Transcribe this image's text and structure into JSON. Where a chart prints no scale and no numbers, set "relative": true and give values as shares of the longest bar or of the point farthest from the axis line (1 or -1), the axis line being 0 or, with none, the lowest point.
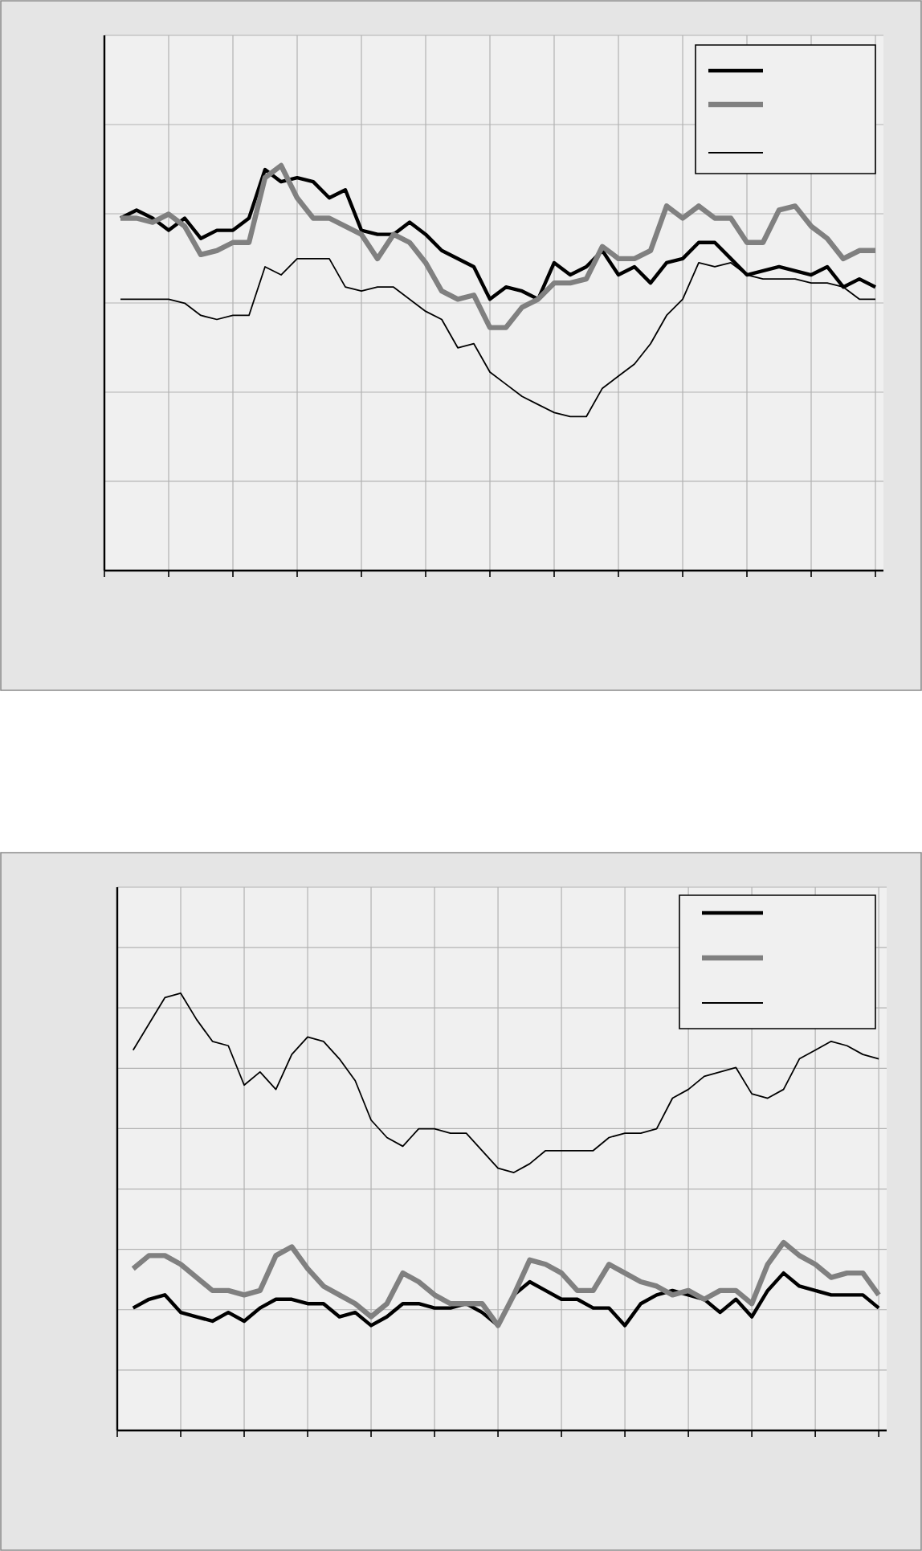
{
  "chart_data": [
    {
      "type": "line",
      "relative": true,
      "grid": true,
      "categories": [
        null,
        null,
        null,
        null,
        null,
        null,
        null,
        null,
        null,
        null,
        null,
        null,
        null,
        null,
        null,
        null,
        null,
        null,
        null,
        null,
        null,
        null,
        null,
        null,
        null,
        null,
        null,
        null,
        null,
        null,
        null,
        null,
        null,
        null,
        null,
        null,
        null,
        null,
        null,
        null,
        null,
        null,
        null,
        null,
        null,
        null,
        null,
        null
      ],
      "series": [
        {
          "color": "#000000",
          "values": [
            0.87,
            0.89,
            0.87,
            0.84,
            0.87,
            0.82,
            0.84,
            0.84,
            0.87,
            0.99,
            0.96,
            0.97,
            0.96,
            0.92,
            0.94,
            0.84,
            0.83,
            0.83,
            0.86,
            0.83,
            0.79,
            0.77,
            0.75,
            0.67,
            0.7,
            0.69,
            0.67,
            0.76,
            0.73,
            0.75,
            0.79,
            0.73,
            0.75,
            0.71,
            0.76,
            0.77,
            0.81,
            0.81,
            0.77,
            0.73,
            0.74,
            0.75,
            0.74,
            0.73,
            0.75,
            0.7,
            0.72,
            0.7
          ]
        },
        {
          "color": "#808080",
          "values": [
            0.87,
            0.87,
            0.86,
            0.88,
            0.85,
            0.78,
            0.79,
            0.81,
            0.81,
            0.97,
            1.0,
            0.92,
            0.87,
            0.87,
            0.85,
            0.83,
            0.77,
            0.83,
            0.81,
            0.76,
            0.69,
            0.67,
            0.68,
            0.6,
            0.6,
            0.65,
            0.67,
            0.71,
            0.71,
            0.72,
            0.8,
            0.77,
            0.77,
            0.79,
            0.9,
            0.87,
            0.9,
            0.87,
            0.87,
            0.81,
            0.81,
            0.89,
            0.9,
            0.85,
            0.82,
            0.77,
            0.79,
            0.79
          ]
        },
        {
          "color": "#000000",
          "values": [
            0.67,
            0.67,
            0.67,
            0.67,
            0.66,
            0.63,
            0.62,
            0.63,
            0.63,
            0.75,
            0.73,
            0.77,
            0.77,
            0.77,
            0.7,
            0.69,
            0.7,
            0.7,
            0.67,
            0.64,
            0.62,
            0.55,
            0.56,
            0.49,
            0.46,
            0.43,
            0.41,
            0.39,
            0.38,
            0.38,
            0.45,
            0.48,
            0.51,
            0.56,
            0.63,
            0.67,
            0.76,
            0.75,
            0.76,
            0.73,
            0.72,
            0.72,
            0.72,
            0.71,
            0.71,
            0.7,
            0.67,
            0.67
          ]
        }
      ]
    },
    {
      "type": "line",
      "relative": true,
      "grid": true,
      "categories": [
        null,
        null,
        null,
        null,
        null,
        null,
        null,
        null,
        null,
        null,
        null,
        null,
        null,
        null,
        null,
        null,
        null,
        null,
        null,
        null,
        null,
        null,
        null,
        null,
        null,
        null,
        null,
        null,
        null,
        null,
        null,
        null,
        null,
        null,
        null,
        null,
        null,
        null,
        null,
        null,
        null,
        null,
        null,
        null,
        null,
        null,
        null,
        null
      ],
      "series": [
        {
          "color": "#000000",
          "values": [
            0.28,
            0.3,
            0.31,
            0.27,
            0.26,
            0.25,
            0.27,
            0.25,
            0.28,
            0.3,
            0.3,
            0.29,
            0.29,
            0.26,
            0.27,
            0.24,
            0.26,
            0.29,
            0.29,
            0.28,
            0.28,
            0.29,
            0.27,
            0.24,
            0.31,
            0.34,
            0.32,
            0.3,
            0.3,
            0.28,
            0.28,
            0.24,
            0.29,
            0.31,
            0.32,
            0.31,
            0.3,
            0.27,
            0.3,
            0.26,
            0.32,
            0.36,
            0.33,
            0.32,
            0.31,
            0.31,
            0.31,
            0.28
          ]
        },
        {
          "color": "#808080",
          "values": [
            0.37,
            0.4,
            0.4,
            0.38,
            0.35,
            0.32,
            0.32,
            0.31,
            0.32,
            0.4,
            0.42,
            0.37,
            0.33,
            0.31,
            0.29,
            0.26,
            0.29,
            0.36,
            0.34,
            0.31,
            0.29,
            0.29,
            0.29,
            0.24,
            0.31,
            0.39,
            0.38,
            0.36,
            0.32,
            0.32,
            0.38,
            0.36,
            0.34,
            0.33,
            0.31,
            0.32,
            0.3,
            0.32,
            0.32,
            0.29,
            0.38,
            0.43,
            0.4,
            0.38,
            0.35,
            0.36,
            0.36,
            0.31
          ]
        },
        {
          "color": "#000000",
          "values": [
            0.87,
            0.93,
            0.99,
            1.0,
            0.94,
            0.89,
            0.88,
            0.79,
            0.82,
            0.78,
            0.86,
            0.9,
            0.89,
            0.85,
            0.8,
            0.71,
            0.67,
            0.65,
            0.69,
            0.69,
            0.68,
            0.68,
            0.64,
            0.6,
            0.59,
            0.61,
            0.64,
            0.64,
            0.64,
            0.64,
            0.67,
            0.68,
            0.68,
            0.69,
            0.76,
            0.78,
            0.81,
            0.82,
            0.83,
            0.77,
            0.76,
            0.78,
            0.85,
            0.87,
            0.89,
            0.88,
            0.86,
            0.85
          ]
        }
      ]
    }
  ]
}
